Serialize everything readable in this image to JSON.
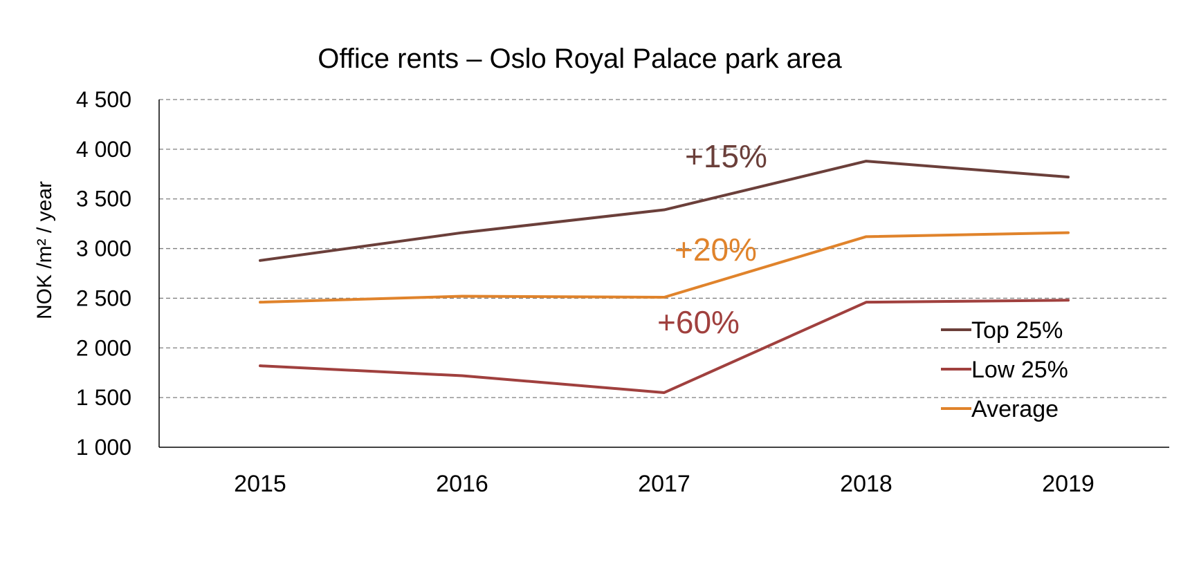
{
  "chart_data": {
    "type": "line",
    "title": "Office rents – Oslo Royal Palace park area",
    "xlabel": "",
    "ylabel": "NOK /m² / year",
    "categories": [
      "2015",
      "2016",
      "2017",
      "2018",
      "2019"
    ],
    "ylim": [
      1000,
      4500
    ],
    "yticks": [
      1000,
      1500,
      2000,
      2500,
      3000,
      3500,
      4000,
      4500
    ],
    "ytick_labels": [
      "1 000",
      "1 500",
      "2 000",
      "2 500",
      "3 000",
      "3 500",
      "4 000",
      "4 500"
    ],
    "grid": true,
    "legend_position": "right",
    "series": [
      {
        "name": "Top 25%",
        "color": "#6B3F3A",
        "values": [
          2880,
          3160,
          3390,
          3880,
          3720
        ]
      },
      {
        "name": "Low 25%",
        "color": "#A0403E",
        "values": [
          1820,
          1720,
          1550,
          2460,
          2480
        ]
      },
      {
        "name": "Average",
        "color": "#E0832B",
        "values": [
          2460,
          2520,
          2510,
          3120,
          3160
        ]
      }
    ],
    "annotations": [
      {
        "text": "+15%",
        "color": "#6B3F3A"
      },
      {
        "text": "+20%",
        "color": "#E0832B"
      },
      {
        "text": "+60%",
        "color": "#A0403E"
      }
    ]
  }
}
